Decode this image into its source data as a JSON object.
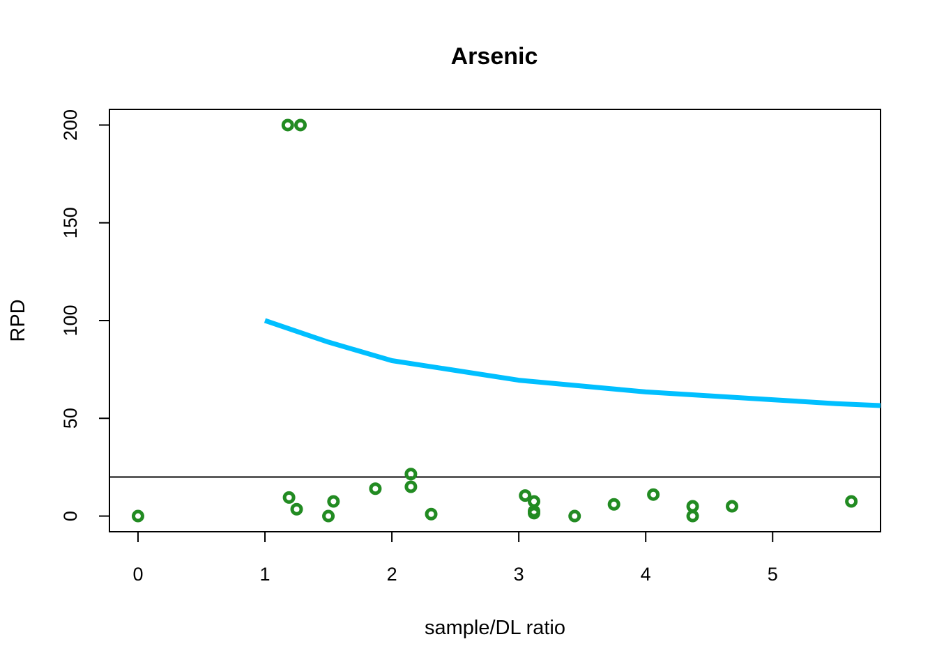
{
  "chart_data": {
    "type": "scatter",
    "title": "Arsenic",
    "xlabel": "sample/DL ratio",
    "ylabel": "RPD",
    "xlim": [
      -0.225,
      5.85
    ],
    "ylim": [
      -8,
      208
    ],
    "x_ticks": [
      0,
      1,
      2,
      3,
      4,
      5
    ],
    "y_ticks": [
      0,
      50,
      100,
      150,
      200
    ],
    "x_tick_labels": [
      "0",
      "1",
      "2",
      "3",
      "4",
      "5"
    ],
    "y_tick_labels": [
      "0",
      "50",
      "100",
      "150",
      "200"
    ],
    "grid": false,
    "reference_line": {
      "y": 20,
      "color": "#000000"
    },
    "points": {
      "color": "#228B22",
      "values": [
        {
          "x": 0.0,
          "y": 0
        },
        {
          "x": 1.18,
          "y": 200
        },
        {
          "x": 1.28,
          "y": 200
        },
        {
          "x": 1.19,
          "y": 9.5
        },
        {
          "x": 1.25,
          "y": 3.5
        },
        {
          "x": 1.5,
          "y": 0
        },
        {
          "x": 1.54,
          "y": 7.5
        },
        {
          "x": 1.87,
          "y": 14
        },
        {
          "x": 2.15,
          "y": 21.5
        },
        {
          "x": 2.15,
          "y": 15
        },
        {
          "x": 2.31,
          "y": 1
        },
        {
          "x": 3.05,
          "y": 10.5
        },
        {
          "x": 3.12,
          "y": 7.5
        },
        {
          "x": 3.12,
          "y": 2.5
        },
        {
          "x": 3.12,
          "y": 1.5
        },
        {
          "x": 3.44,
          "y": 0
        },
        {
          "x": 3.75,
          "y": 6
        },
        {
          "x": 4.06,
          "y": 11
        },
        {
          "x": 4.37,
          "y": 5
        },
        {
          "x": 4.37,
          "y": 0
        },
        {
          "x": 4.68,
          "y": 5
        },
        {
          "x": 5.62,
          "y": 7.5
        }
      ]
    },
    "curve": {
      "color": "#00BFFF",
      "x": [
        1,
        1.5,
        2,
        2.5,
        3,
        3.5,
        4,
        4.5,
        5,
        5.5,
        5.85
      ],
      "y": [
        100,
        89,
        79.5,
        74.5,
        69.5,
        66.5,
        63.5,
        61.5,
        59.5,
        57.5,
        56.5
      ]
    }
  }
}
